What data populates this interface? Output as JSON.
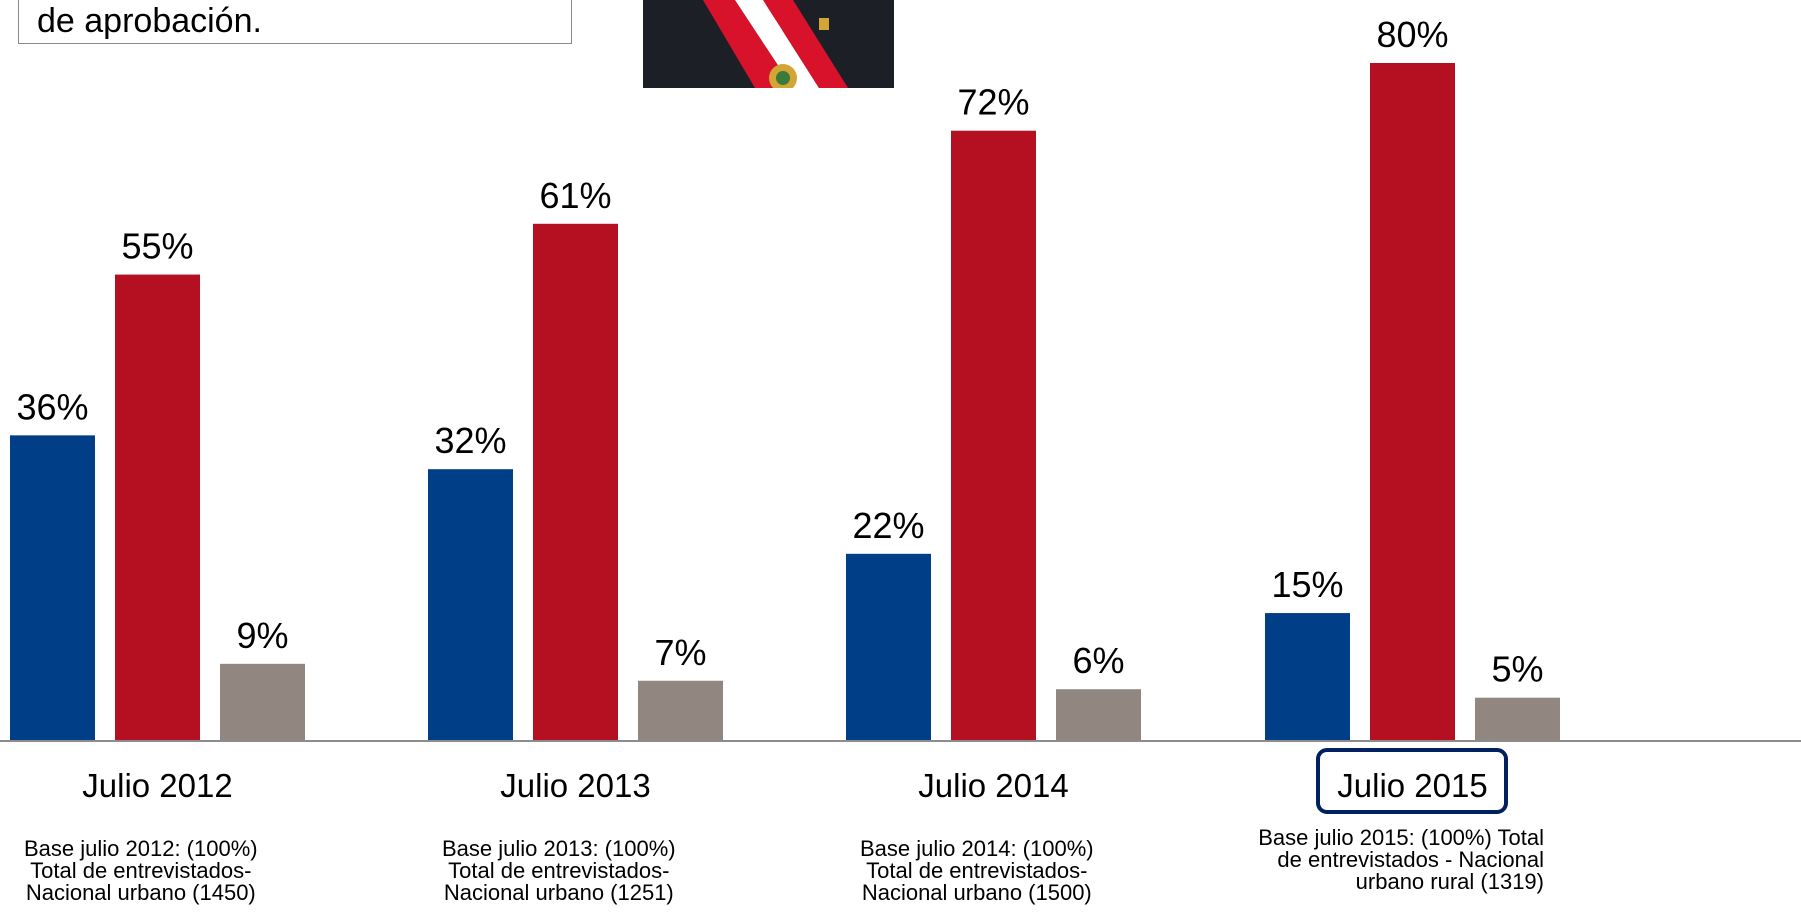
{
  "callout": {
    "text": "de aprobación."
  },
  "chart_data": {
    "type": "bar",
    "categories": [
      "Julio 2012",
      "Julio 2013",
      "Julio 2014",
      "Julio 2015"
    ],
    "series": [
      {
        "values": [
          36,
          32,
          22,
          15
        ],
        "labels": [
          "36%",
          "32%",
          "22%",
          "15%"
        ],
        "color": "#003f87"
      },
      {
        "values": [
          55,
          61,
          72,
          80
        ],
        "labels": [
          "55%",
          "61%",
          "72%",
          "80%"
        ],
        "color": "#b51021"
      },
      {
        "values": [
          9,
          7,
          6,
          5
        ],
        "labels": [
          "9%",
          "7%",
          "6%",
          "5%"
        ],
        "color": "#918680"
      }
    ],
    "highlighted_category": "Julio 2015",
    "highlight_color": "#002060",
    "base_notes": [
      "Base julio  2012: (100%)\nTotal de entrevistados-\nNacional urbano (1450)",
      "Base julio  2013: (100%)\nTotal de entrevistados-\nNacional urbano (1251)",
      "Base julio  2014: (100%)\nTotal de entrevistados-\nNacional urbano (1500)",
      "Base julio 2015: (100%) Total\nde entrevistados - Nacional\nurbano rural (1319)"
    ],
    "ylim": [
      0,
      80
    ],
    "grid": false,
    "legend": "none"
  },
  "colors": {
    "axis_line": "#8c8c8c",
    "suit": "#1d1f26",
    "sash_red": "#d7122a",
    "tie": "#2a3a7a"
  }
}
